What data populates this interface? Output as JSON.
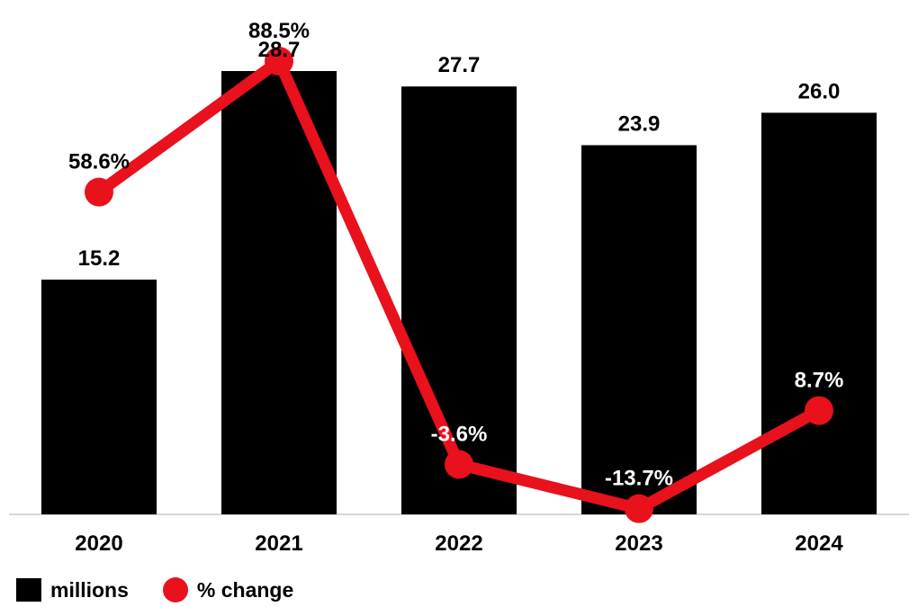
{
  "chart_data": {
    "type": "bar",
    "categories": [
      "2020",
      "2021",
      "2022",
      "2023",
      "2024"
    ],
    "series": [
      {
        "name": "millions",
        "type": "bar",
        "values": [
          15.2,
          28.7,
          27.7,
          23.9,
          26.0
        ],
        "labels": [
          "15.2",
          "28.7",
          "27.7",
          "23.9",
          "26.0"
        ]
      },
      {
        "name": "% change",
        "type": "line",
        "values": [
          58.6,
          88.5,
          -3.6,
          -13.7,
          8.7
        ],
        "labels": [
          "58.6%",
          "88.5%",
          "-3.6%",
          "-13.7%",
          "8.7%"
        ]
      }
    ],
    "bar_ylim": [
      0,
      32.6
    ],
    "line_ylim": [
      -15.0,
      100.0
    ],
    "colors": {
      "bars": "#000000",
      "line": "#e8111c",
      "axis": "#cccccc"
    },
    "grid": false,
    "legend_position": "bottom-left"
  },
  "legend": {
    "bars_label": "millions",
    "line_label": "% change"
  }
}
